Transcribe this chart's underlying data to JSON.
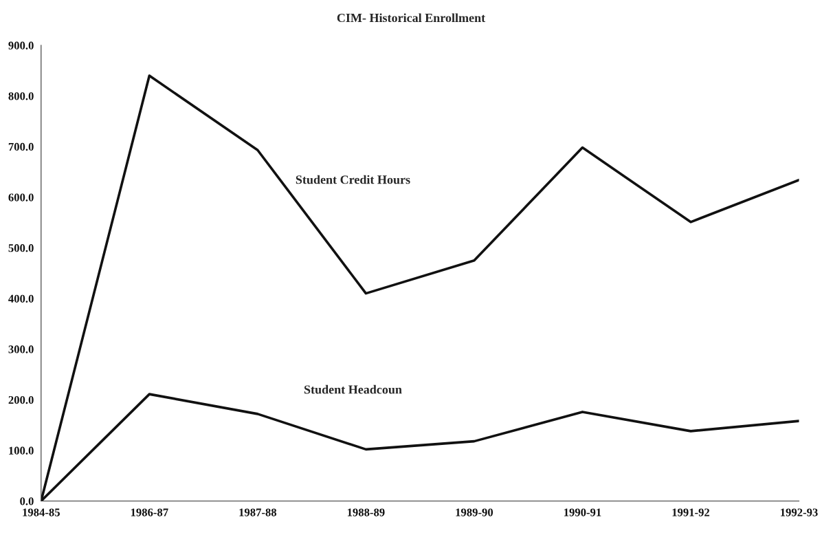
{
  "chart_data": {
    "type": "line",
    "title": "CIM- Historical Enrollment",
    "categories": [
      "1984-85",
      "1986-87",
      "1987-88",
      "1988-89",
      "1989-90",
      "1990-91",
      "1991-92",
      "1992-93"
    ],
    "series": [
      {
        "name": "Student Credit Hours",
        "color": "#111111",
        "values": [
          0,
          840,
          693,
          410,
          475,
          698,
          551,
          634
        ]
      },
      {
        "name": "Student Headcoun",
        "color": "#111111",
        "values": [
          0,
          211,
          172,
          102,
          118,
          176,
          138,
          158
        ]
      }
    ],
    "ylim": [
      0,
      900
    ],
    "yticks": [
      {
        "value": 0,
        "label": "0.0"
      },
      {
        "value": 100,
        "label": "100.0"
      },
      {
        "value": 200,
        "label": "200.0"
      },
      {
        "value": 300,
        "label": "300.0"
      },
      {
        "value": 400,
        "label": "400.0"
      },
      {
        "value": 500,
        "label": "500.0"
      },
      {
        "value": 600,
        "label": "600.0"
      },
      {
        "value": 700,
        "label": "700.0"
      },
      {
        "value": 800,
        "label": "800.0"
      },
      {
        "value": 900,
        "label": "900.0"
      }
    ],
    "grid": false,
    "legend": false,
    "marker": "none",
    "line_style": "solid"
  }
}
